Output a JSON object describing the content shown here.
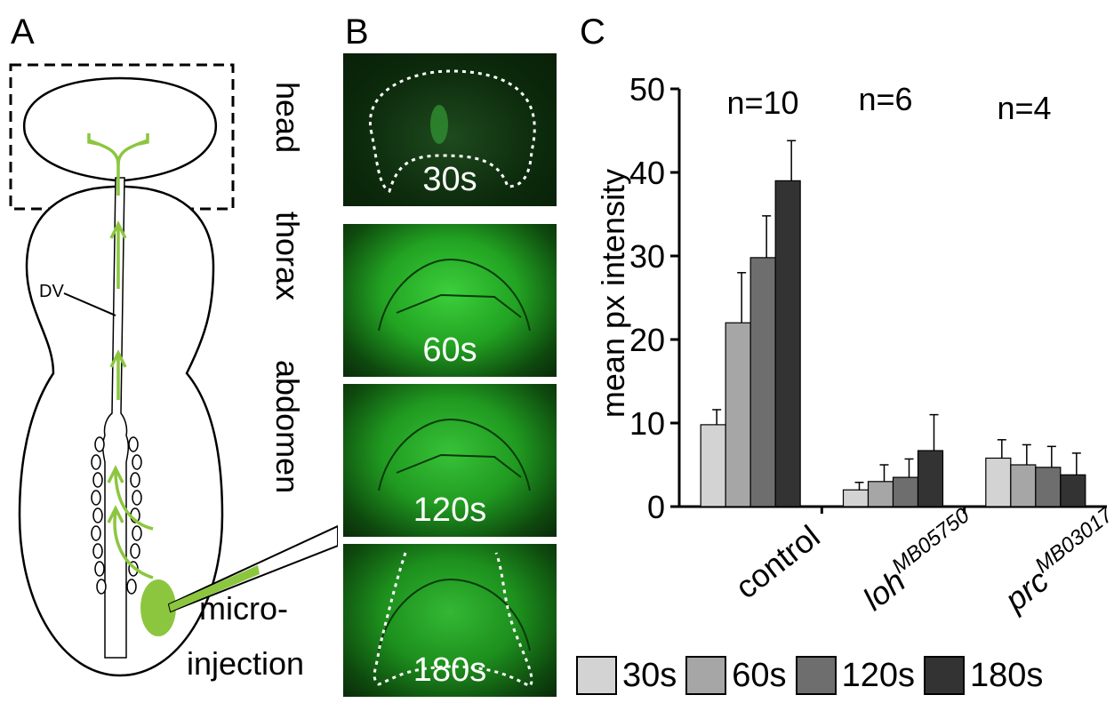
{
  "figure": {
    "panels": {
      "A": "A",
      "B": "B",
      "C": "C"
    },
    "panelA": {
      "regions": [
        "head",
        "thorax",
        "abdomen"
      ],
      "dv_label": "DV",
      "injection_label_line1": "micro-",
      "injection_label_line2": "injection",
      "arrow_color": "#8cc63f"
    },
    "panelB": {
      "frames": [
        "30s",
        "60s",
        "120s",
        "180s"
      ]
    },
    "panelC": {
      "n_labels": [
        "n=10",
        "n=6",
        "n=4"
      ]
    }
  },
  "chart_data": {
    "type": "bar",
    "categories": [
      "control",
      "loh",
      "prc"
    ],
    "category_superscripts": [
      "",
      "MB05750",
      "MB03017"
    ],
    "ylabel": "mean px intensity",
    "ylim": [
      0,
      50
    ],
    "yticks": [
      0,
      10,
      20,
      30,
      40,
      50
    ],
    "series": [
      {
        "name": "30s",
        "color": "#d3d3d3",
        "values": [
          9.8,
          2.0,
          5.8
        ],
        "errors": [
          1.8,
          0.9,
          2.2
        ]
      },
      {
        "name": "60s",
        "color": "#a6a6a6",
        "values": [
          22.0,
          3.0,
          5.0
        ],
        "errors": [
          6.0,
          2.0,
          2.4
        ]
      },
      {
        "name": "120s",
        "color": "#6e6e6e",
        "values": [
          29.8,
          3.5,
          4.7
        ],
        "errors": [
          5.0,
          2.2,
          2.5
        ]
      },
      {
        "name": "180s",
        "color": "#333333",
        "values": [
          39.0,
          6.7,
          3.8
        ],
        "errors": [
          4.8,
          4.3,
          2.6
        ]
      }
    ],
    "grid": false,
    "legend_position": "bottom"
  }
}
